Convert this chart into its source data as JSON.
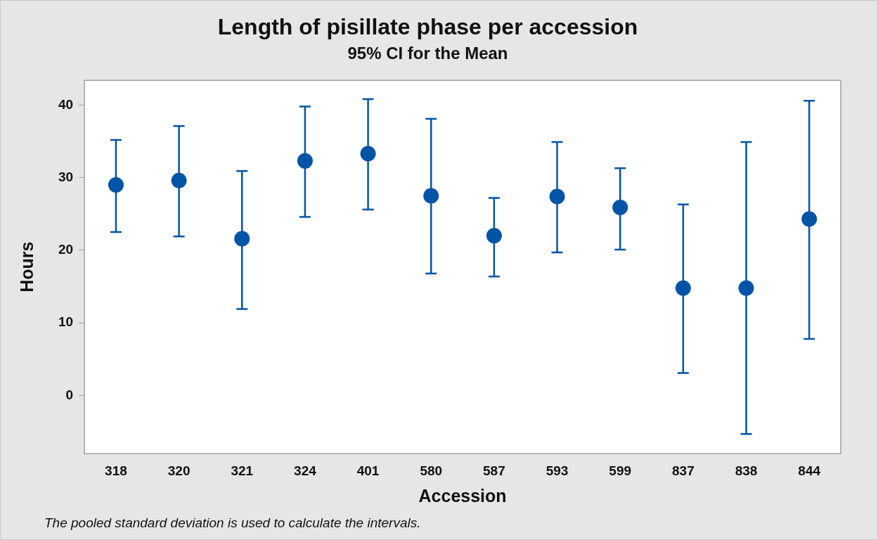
{
  "chart_data": {
    "type": "scatter",
    "title": "Length of pisillate phase per accession",
    "subtitle": "95% CI for the Mean",
    "xlabel": "Accession",
    "ylabel": "Hours",
    "categories": [
      "318",
      "320",
      "321",
      "324",
      "401",
      "580",
      "587",
      "593",
      "599",
      "837",
      "838",
      "844"
    ],
    "values": [
      29.0,
      29.6,
      21.6,
      32.3,
      33.3,
      27.5,
      22.0,
      27.4,
      25.9,
      14.8,
      14.8,
      24.3
    ],
    "errors": [
      [
        22.5,
        35.2
      ],
      [
        21.9,
        37.1
      ],
      [
        11.9,
        30.9
      ],
      [
        24.6,
        39.8
      ],
      [
        25.6,
        40.8
      ],
      [
        16.8,
        38.1
      ],
      [
        16.4,
        27.2
      ],
      [
        19.7,
        34.9
      ],
      [
        20.1,
        31.3
      ],
      [
        3.1,
        26.3
      ],
      [
        -5.3,
        34.9
      ],
      [
        7.8,
        40.6
      ]
    ],
    "color": "#0054a6",
    "marker": "circle",
    "grid": false,
    "legend": false,
    "ylim": [
      -8,
      43.4
    ],
    "yticks": [
      0,
      10,
      20,
      30,
      40
    ],
    "annotations": [
      "The pooled standard deviation is used to calculate the intervals."
    ]
  }
}
